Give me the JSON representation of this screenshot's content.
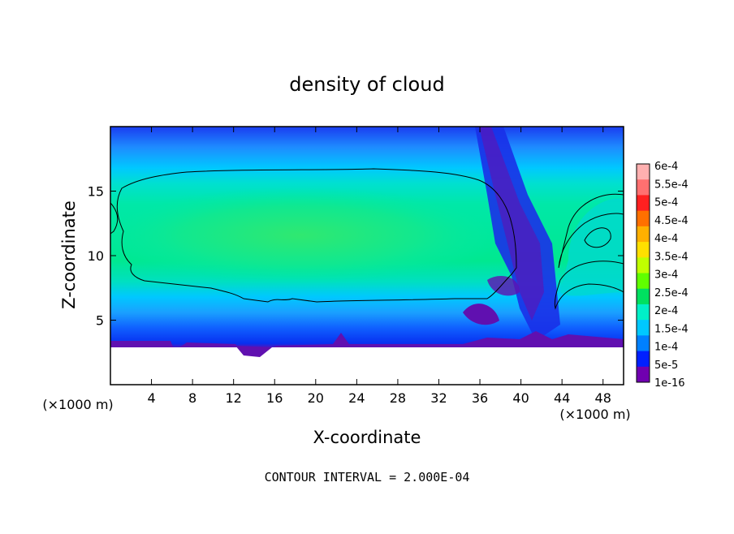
{
  "chart_data": {
    "type": "heatmap",
    "title": "density of cloud",
    "xlabel": "X-coordinate",
    "ylabel": "Z-coordinate",
    "x_unit_left": "(×1000 m)",
    "x_unit_right": "(×1000 m)",
    "xlim": [
      0,
      50
    ],
    "ylim": [
      0,
      20
    ],
    "x_ticks": [
      4,
      8,
      12,
      16,
      20,
      24,
      28,
      32,
      36,
      40,
      44,
      48
    ],
    "y_ticks": [
      5,
      10,
      15
    ],
    "x_tick_labels": [
      "4",
      "8",
      "12",
      "16",
      "20",
      "24",
      "28",
      "32",
      "36",
      "40",
      "44",
      "48"
    ],
    "y_tick_labels": [
      "5",
      "10",
      "15"
    ],
    "footer": "CONTOUR INTERVAL = 2.000E-04",
    "colorbar": {
      "labels": [
        "6e-4",
        "5.5e-4",
        "5e-4",
        "4.5e-4",
        "4e-4",
        "3.5e-4",
        "3e-4",
        "2.5e-4",
        "2e-4",
        "1.5e-4",
        "1e-4",
        "5e-5",
        "1e-16"
      ],
      "colors": [
        "#ffb0b0",
        "#ff7070",
        "#ff2020",
        "#ff7000",
        "#ffb000",
        "#ffe000",
        "#c0ff00",
        "#60ff00",
        "#00e060",
        "#00f0c8",
        "#00c8ff",
        "#0080ff",
        "#0020ff",
        "#7000b0"
      ]
    }
  }
}
